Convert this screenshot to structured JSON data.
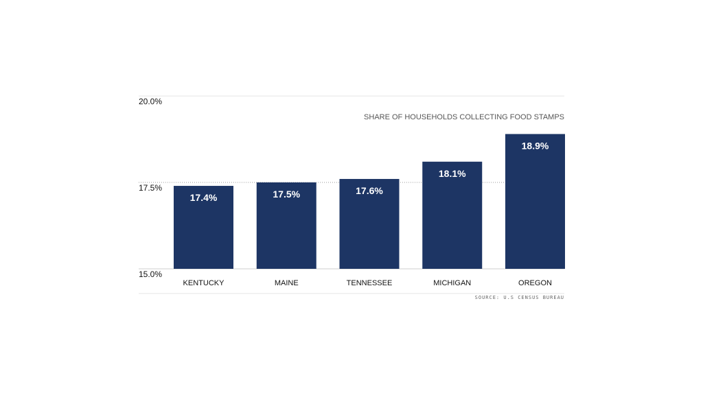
{
  "chart_data": {
    "type": "bar",
    "title": "SHARE OF HOUSEHOLDS COLLECTING FOOD STAMPS",
    "source": "SOURCE: U.S CENSUS BUREAU",
    "categories": [
      "KENTUCKY",
      "MAINE",
      "TENNESSEE",
      "MICHIGAN",
      "OREGON"
    ],
    "values": [
      17.4,
      17.5,
      17.6,
      18.1,
      18.9
    ],
    "value_labels": [
      "17.4%",
      "17.5%",
      "17.6%",
      "18.1%",
      "18.9%"
    ],
    "ylim": [
      15.0,
      20.0
    ],
    "yticks": [
      15.0,
      17.5,
      20.0
    ],
    "ytick_labels": [
      "15.0%",
      "17.5%",
      "20.0%"
    ],
    "reference_line": 17.5,
    "xlabel": "",
    "ylabel": "",
    "colors": {
      "bar": "#1d3564",
      "label": "#ffffff",
      "grid": "#e6e6e6",
      "reference": "#9a9a9a"
    }
  }
}
